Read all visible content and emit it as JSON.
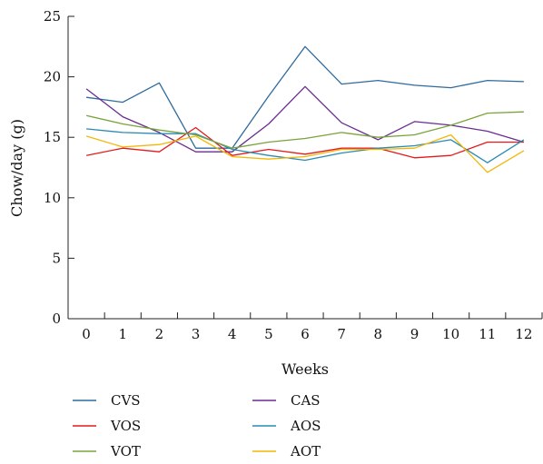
{
  "chart_data": {
    "type": "line",
    "x": [
      0,
      1,
      2,
      3,
      4,
      5,
      6,
      7,
      8,
      9,
      10,
      11,
      12
    ],
    "x_tick_labels": [
      "0",
      "1",
      "2",
      "3",
      "4",
      "5",
      "6",
      "7",
      "8",
      "9",
      "10",
      "11",
      "12"
    ],
    "y_ticks": [
      0,
      5,
      10,
      15,
      20,
      25
    ],
    "y_tick_labels": [
      "0",
      "5",
      "10",
      "15",
      "20",
      "25"
    ],
    "xlim": [
      -0.5,
      12.5
    ],
    "ylim": [
      0,
      25
    ],
    "xlabel": "Weeks",
    "ylabel": "Chow/day (g)",
    "title": "",
    "grid": false,
    "legend_position": "bottom",
    "series": [
      {
        "name": "CVS",
        "color": "#2e6a9e",
        "values": [
          18.3,
          17.9,
          19.5,
          14.1,
          14.1,
          18.4,
          22.5,
          19.4,
          19.7,
          19.3,
          19.1,
          19.7,
          19.6
        ]
      },
      {
        "name": "CAS",
        "color": "#6b2c91",
        "values": [
          19.0,
          16.7,
          15.4,
          13.8,
          13.8,
          16.1,
          19.2,
          16.2,
          14.8,
          16.3,
          16.0,
          15.5,
          14.6
        ]
      },
      {
        "name": "VOS",
        "color": "#e31a1c",
        "values": [
          13.5,
          14.1,
          13.8,
          15.8,
          13.5,
          14.0,
          13.6,
          14.1,
          14.1,
          13.3,
          13.5,
          14.6,
          14.6
        ]
      },
      {
        "name": "AOS",
        "color": "#2a8bb2",
        "values": [
          15.7,
          15.4,
          15.3,
          15.3,
          14.0,
          13.5,
          13.1,
          13.7,
          14.1,
          14.3,
          14.8,
          12.9,
          14.8
        ]
      },
      {
        "name": "VOT",
        "color": "#7aa33a",
        "values": [
          16.8,
          16.1,
          15.6,
          15.2,
          14.1,
          14.6,
          14.9,
          15.4,
          15.0,
          15.2,
          16.0,
          17.0,
          17.1
        ]
      },
      {
        "name": "AOT",
        "color": "#f2b705",
        "values": [
          15.1,
          14.2,
          14.4,
          15.1,
          13.4,
          13.2,
          13.4,
          14.0,
          14.0,
          14.1,
          15.2,
          12.1,
          13.9
        ]
      }
    ]
  }
}
